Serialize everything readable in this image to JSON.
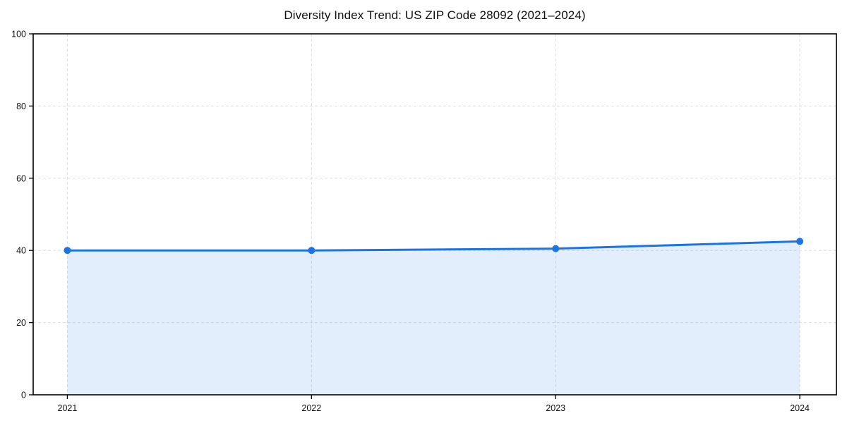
{
  "page": {
    "background": "#ffffff"
  },
  "chart_data": {
    "type": "area",
    "title": "Diversity Index Trend: US ZIP Code 28092 (2021–2024)",
    "x": [
      2021,
      2022,
      2023,
      2024
    ],
    "series": [
      {
        "name": "Diversity Index",
        "values": [
          40.0,
          40.0,
          40.5,
          42.5
        ]
      }
    ],
    "xlabel": "",
    "ylabel": "",
    "xticks": [
      2021,
      2022,
      2023,
      2024
    ],
    "yticks": [
      0,
      20,
      40,
      60,
      80,
      100
    ],
    "xlim": [
      2020.86,
      2024.15
    ],
    "ylim": [
      0,
      100
    ],
    "grid": true,
    "grid_style": "dashed",
    "legend": "none",
    "marker": "circle",
    "colors": {
      "line": "#1a73e8",
      "marker": "#1a73e8",
      "fill": "rgba(26,115,232,0.12)",
      "grid": "#dedede",
      "axis": "#000000",
      "text": "#111111",
      "background": "#ffffff"
    }
  }
}
